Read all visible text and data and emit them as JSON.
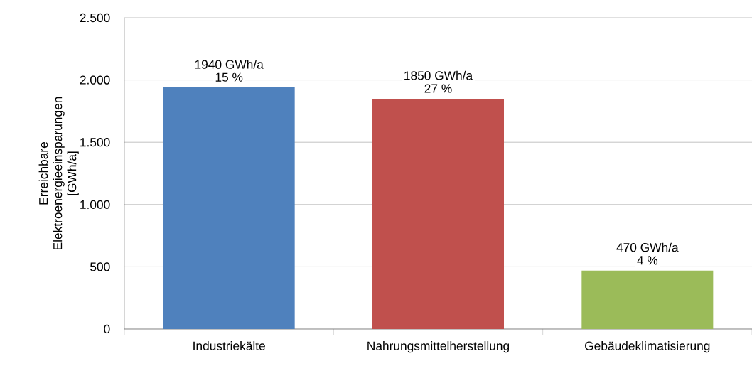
{
  "chart_data": {
    "type": "bar",
    "ylabel": "Erreichbare Elektroenergieeinsparungen [GWh/a]",
    "categories": [
      "Industriekälte",
      "Nahrungsmittelherstellung",
      "Gebäudeklimatisierung"
    ],
    "values": [
      1940,
      1850,
      470
    ],
    "colors": [
      "#4f81bd",
      "#c0504d",
      "#9bbb59"
    ],
    "value_labels": [
      "1940 GWh/a",
      "1850 GWh/a",
      "470 GWh/a"
    ],
    "annotations": [
      {
        "text": "15 %",
        "x": "Industriekälte",
        "y": 1940
      },
      {
        "text": "27 %",
        "x": "Nahrungsmittelherstellung",
        "y": 1850
      },
      {
        "text": "4 %",
        "x": "Gebäudeklimatisierung",
        "y": 470
      }
    ],
    "ylim": [
      0,
      2500
    ],
    "yticks": [
      {
        "value": 0,
        "label": "0"
      },
      {
        "value": 500,
        "label": "500"
      },
      {
        "value": 1000,
        "label": "1.000"
      },
      {
        "value": 1500,
        "label": "1.500"
      },
      {
        "value": 2000,
        "label": "2.000"
      },
      {
        "value": 2500,
        "label": "2.500"
      }
    ],
    "grid": "y"
  }
}
